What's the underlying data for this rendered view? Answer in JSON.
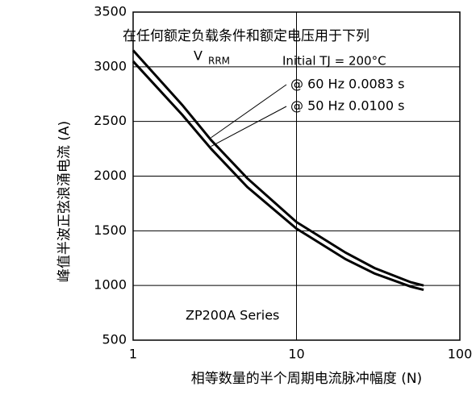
{
  "chart_data": {
    "type": "line",
    "title": "在任何额定负载条件和额定电压用于下列",
    "x_label": "相等数量的半个周期电流脉冲幅度 (N)",
    "y_label": "峰值半波正弦浪涌电流 (A)",
    "annotations": [
      "V",
      "RRM",
      "Initial TJ = 200°C",
      "ZP200A Series"
    ],
    "x": [
      1,
      2,
      3,
      5,
      10,
      20,
      30,
      50,
      60
    ],
    "series": [
      {
        "name": "@ 60 Hz 0.0083 s",
        "color": "#000000",
        "values": [
          3150,
          2650,
          2330,
          1980,
          1580,
          1300,
          1160,
          1030,
          1000
        ]
      },
      {
        "name": "@ 50 Hz 0.0100 s",
        "color": "#000000",
        "values": [
          3050,
          2560,
          2250,
          1900,
          1520,
          1240,
          1110,
          990,
          960
        ]
      }
    ],
    "xlim": [
      1,
      100
    ],
    "xticks": [
      1,
      10,
      100
    ],
    "x_log": true,
    "ylim": [
      500,
      3500
    ],
    "yticks": [
      500,
      1000,
      1500,
      2000,
      2500,
      3000,
      3500
    ],
    "grid": true
  }
}
